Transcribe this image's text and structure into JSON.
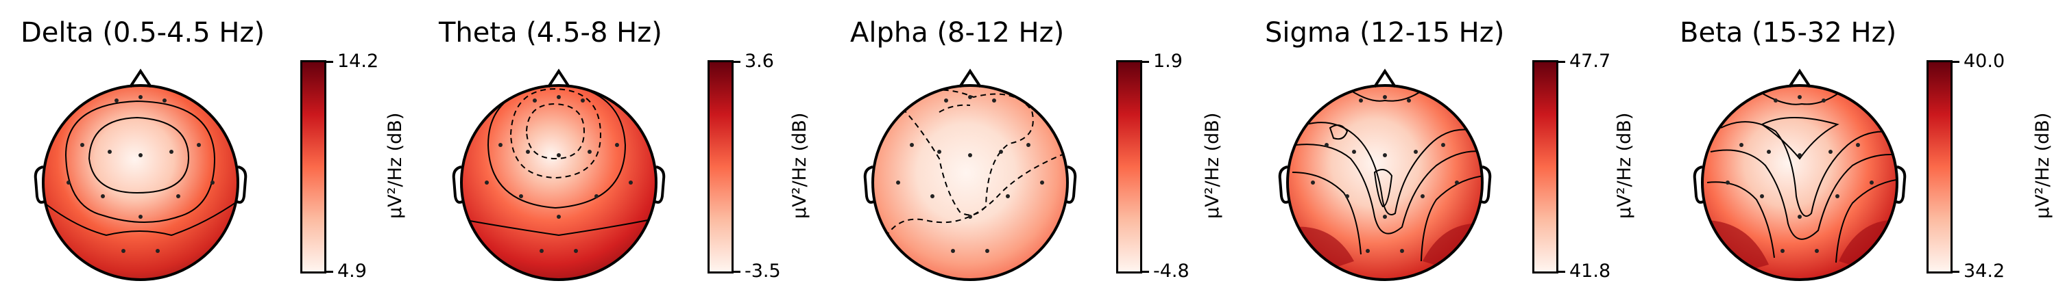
{
  "chart_data": [
    {
      "type": "heatmap",
      "title": "Delta (0.5-4.5 Hz)",
      "colorbar": {
        "label": "µV²/Hz (dB)",
        "min": "4.9",
        "max": "14.2"
      },
      "colormap": [
        "#fff5f0",
        "#fcbba1",
        "#fb6a4a",
        "#cb181d",
        "#67000d"
      ],
      "dashed_contours": false
    },
    {
      "type": "heatmap",
      "title": "Theta (4.5-8 Hz)",
      "colorbar": {
        "label": "µV²/Hz (dB)",
        "min": "-3.5",
        "max": "3.6"
      },
      "colormap": [
        "#fff5f0",
        "#fcbba1",
        "#fb6a4a",
        "#cb181d",
        "#67000d"
      ],
      "dashed_contours": true
    },
    {
      "type": "heatmap",
      "title": "Alpha (8-12 Hz)",
      "colorbar": {
        "label": "µV²/Hz (dB)",
        "min": "-4.8",
        "max": "1.9"
      },
      "colormap": [
        "#fff5f0",
        "#fcbba1",
        "#fb6a4a",
        "#cb181d",
        "#67000d"
      ],
      "dashed_contours": true
    },
    {
      "type": "heatmap",
      "title": "Sigma (12-15 Hz)",
      "colorbar": {
        "label": "µV²/Hz (dB)",
        "min": "41.8",
        "max": "47.7"
      },
      "colormap": [
        "#fff5f0",
        "#fcbba1",
        "#fb6a4a",
        "#cb181d",
        "#67000d"
      ],
      "dashed_contours": false
    },
    {
      "type": "heatmap",
      "title": "Beta (15-32 Hz)",
      "colorbar": {
        "label": "µV²/Hz (dB)",
        "min": "34.2",
        "max": "40.0"
      },
      "colormap": [
        "#fff5f0",
        "#fcbba1",
        "#fb6a4a",
        "#cb181d",
        "#67000d"
      ],
      "dashed_contours": false
    }
  ]
}
